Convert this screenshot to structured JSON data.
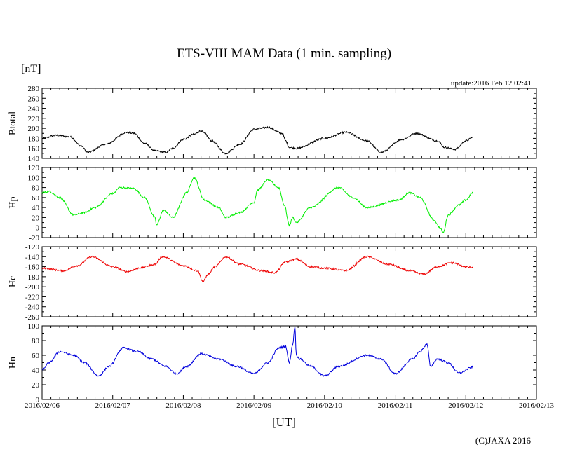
{
  "title": "ETS-VIII MAM Data (1 min. sampling)",
  "unit_label": "[nT]",
  "update_text": "update:2016 Feb 12 02:41",
  "copyright": "(C)JAXA 2016",
  "chart_data": {
    "type": "line",
    "title": "ETS-VIII MAM Data (1 min. sampling)",
    "xlabel": "[UT]",
    "x_ticks": [
      "2016/02/06",
      "2016/02/07",
      "2016/02/08",
      "2016/02/09",
      "2016/02/10",
      "2016/02/11",
      "2016/02/12",
      "2016/02/13"
    ],
    "x_range": [
      "2016/02/06 00:00",
      "2016/02/13 00:00"
    ],
    "x_unit": "days since 2016/02/06 00:00",
    "grid": false,
    "panels": [
      {
        "name": "Btotal",
        "ylabel": "Btotal",
        "color": "#000000",
        "ylim": [
          140,
          280
        ],
        "yticks": [
          140,
          160,
          180,
          200,
          220,
          240,
          260,
          280
        ],
        "x": [
          0.0,
          0.2,
          0.4,
          0.55,
          0.65,
          0.9,
          1.2,
          1.3,
          1.45,
          1.6,
          1.75,
          1.85,
          2.0,
          2.15,
          2.25,
          2.3,
          2.4,
          2.6,
          2.8,
          3.0,
          3.2,
          3.4,
          3.45,
          3.5,
          3.6,
          4.0,
          4.3,
          4.6,
          4.8,
          5.1,
          5.3,
          5.6,
          5.7,
          5.85,
          6.0,
          6.1
        ],
        "values": [
          180,
          186,
          183,
          165,
          152,
          168,
          192,
          190,
          170,
          155,
          152,
          160,
          178,
          188,
          195,
          190,
          175,
          150,
          168,
          198,
          202,
          190,
          175,
          162,
          160,
          180,
          192,
          175,
          152,
          178,
          190,
          175,
          162,
          158,
          175,
          182
        ]
      },
      {
        "name": "Hp",
        "ylabel": "Hp",
        "color": "#00ee00",
        "ylim": [
          -20,
          120
        ],
        "yticks": [
          -20,
          0,
          20,
          40,
          60,
          80,
          100,
          120
        ],
        "x": [
          0.0,
          0.1,
          0.25,
          0.45,
          0.6,
          0.75,
          1.0,
          1.1,
          1.3,
          1.45,
          1.6,
          1.62,
          1.72,
          1.85,
          2.05,
          2.15,
          2.3,
          2.5,
          2.6,
          2.8,
          3.0,
          3.05,
          3.2,
          3.35,
          3.43,
          3.5,
          3.55,
          3.6,
          3.8,
          4.2,
          4.4,
          4.6,
          5.05,
          5.2,
          5.35,
          5.55,
          5.63,
          5.68,
          5.75,
          5.9,
          6.0,
          6.1
        ],
        "values": [
          70,
          72,
          60,
          25,
          30,
          40,
          68,
          80,
          78,
          60,
          20,
          5,
          35,
          20,
          70,
          100,
          55,
          40,
          20,
          30,
          50,
          75,
          95,
          80,
          45,
          5,
          20,
          10,
          40,
          80,
          60,
          40,
          55,
          70,
          60,
          15,
          0,
          -10,
          25,
          45,
          55,
          70
        ]
      },
      {
        "name": "Hc",
        "ylabel": "Hc",
        "color": "#ee0000",
        "ylim": [
          -260,
          -120
        ],
        "yticks": [
          -260,
          -240,
          -220,
          -200,
          -180,
          -160,
          -140,
          -120
        ],
        "x": [
          0.0,
          0.3,
          0.5,
          0.7,
          1.0,
          1.2,
          1.4,
          1.6,
          1.7,
          2.0,
          2.2,
          2.28,
          2.35,
          2.45,
          2.6,
          2.8,
          3.1,
          3.3,
          3.45,
          3.6,
          3.8,
          4.0,
          4.3,
          4.6,
          4.9,
          5.2,
          5.4,
          5.6,
          5.8,
          6.0,
          6.1
        ],
        "values": [
          -163,
          -168,
          -158,
          -140,
          -160,
          -170,
          -162,
          -155,
          -140,
          -158,
          -168,
          -190,
          -175,
          -160,
          -140,
          -155,
          -168,
          -172,
          -150,
          -145,
          -160,
          -163,
          -168,
          -140,
          -155,
          -168,
          -175,
          -160,
          -152,
          -160,
          -162
        ]
      },
      {
        "name": "Hn",
        "ylabel": "Hn",
        "color": "#0000dd",
        "ylim": [
          0,
          100
        ],
        "yticks": [
          0,
          20,
          40,
          60,
          80,
          100
        ],
        "x": [
          0.0,
          0.1,
          0.25,
          0.45,
          0.6,
          0.8,
          0.95,
          1.15,
          1.35,
          1.55,
          1.75,
          1.9,
          2.05,
          2.25,
          2.5,
          2.75,
          3.0,
          3.2,
          3.35,
          3.45,
          3.5,
          3.55,
          3.58,
          3.6,
          3.65,
          3.8,
          4.0,
          4.2,
          4.6,
          4.8,
          5.0,
          5.25,
          5.35,
          5.45,
          5.5,
          5.6,
          5.75,
          5.9,
          6.1
        ],
        "values": [
          40,
          50,
          65,
          60,
          50,
          32,
          45,
          70,
          65,
          55,
          45,
          35,
          45,
          62,
          55,
          45,
          35,
          50,
          70,
          72,
          50,
          75,
          100,
          60,
          55,
          45,
          32,
          45,
          60,
          55,
          35,
          55,
          65,
          75,
          45,
          55,
          50,
          36,
          44
        ]
      }
    ]
  }
}
